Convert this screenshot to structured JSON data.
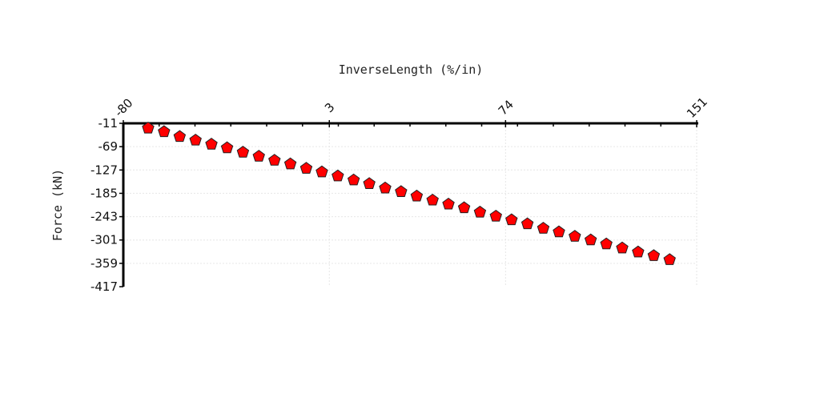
{
  "chart_data": {
    "type": "scatter",
    "title": "",
    "xlabel": "InverseLength (%/in)",
    "ylabel": "Force (kN)",
    "x_axis_position": "top",
    "xlim": [
      -80,
      151
    ],
    "ylim": [
      -417,
      -11
    ],
    "x_ticks": [
      "-80",
      "3",
      "74",
      "151"
    ],
    "y_ticks": [
      "-11",
      "-69",
      "-127",
      "-185",
      "-243",
      "-301",
      "-359",
      "-417"
    ],
    "grid": true,
    "legend": "none",
    "marker": "pentagon",
    "marker_color": "#ff0000",
    "series": [
      {
        "x": [
          -70,
          -63.6,
          -57.3,
          -50.9,
          -44.5,
          -38.2,
          -31.8,
          -25.4,
          -19.1,
          -12.7,
          -6.3,
          0,
          6.4,
          12.8,
          19.1,
          25.5,
          31.9,
          38.2,
          44.6,
          51,
          57.3,
          63.7,
          70.1,
          76.4,
          82.8,
          89.2,
          95.5,
          101.9,
          108.3,
          114.6,
          121,
          127.4,
          133.7,
          140.1
        ],
        "y": [
          -23,
          -32,
          -44,
          -53,
          -63,
          -72,
          -83,
          -93,
          -103,
          -112,
          -123,
          -132,
          -142,
          -152,
          -161,
          -172,
          -181,
          -192,
          -202,
          -212,
          -221,
          -232,
          -242,
          -251,
          -261,
          -272,
          -281,
          -292,
          -301,
          -311,
          -321,
          -331,
          -340,
          -350
        ]
      }
    ]
  }
}
